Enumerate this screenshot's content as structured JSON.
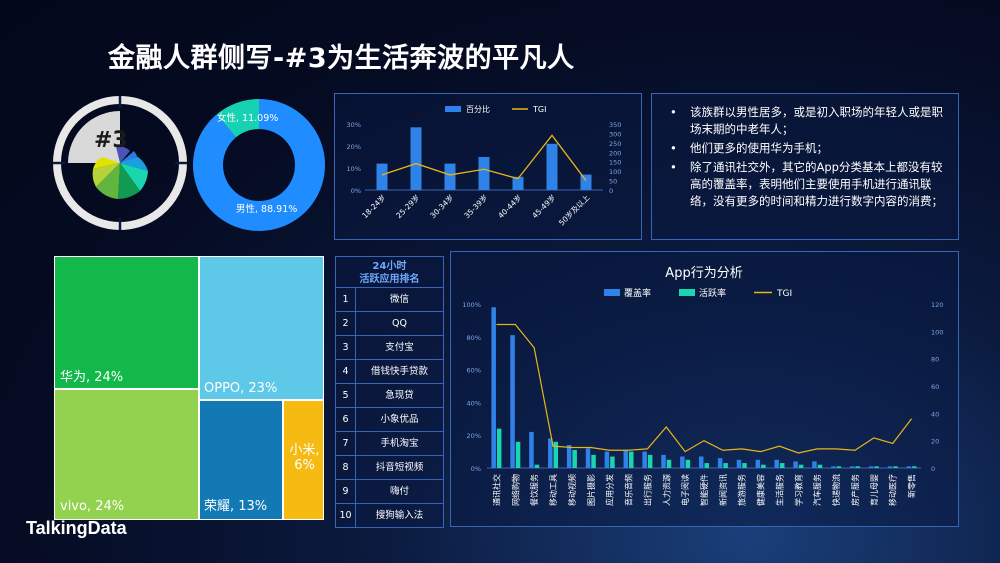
{
  "header": {
    "title": "金融人群侧写-#3为生活奔波的平凡人"
  },
  "footer": {
    "logo": "TalkingData"
  },
  "badge": {
    "label": "#3"
  },
  "gender_chart": {
    "type": "pie",
    "slices": [
      {
        "label": "女性, 11.09%",
        "value": 11.09,
        "color": "#17d1b3"
      },
      {
        "label": "男性, 88.91%",
        "value": 88.91,
        "color": "#1f8cff"
      }
    ]
  },
  "age_chart": {
    "type": "bar",
    "legend": {
      "bar": "百分比",
      "line": "TGI"
    },
    "categories": [
      "18-24岁",
      "25-29岁",
      "30-34岁",
      "35-39岁",
      "40-44岁",
      "45-49岁",
      "50岁及以上"
    ],
    "percent": [
      12,
      28.5,
      12,
      15,
      6,
      21,
      7
    ],
    "tgi": [
      80,
      140,
      80,
      110,
      60,
      290,
      50
    ],
    "left_ticks": [
      "0%",
      "10%",
      "20%",
      "30%"
    ],
    "right_ticks": [
      "0",
      "50",
      "100",
      "150",
      "200",
      "250",
      "300",
      "350"
    ],
    "ylim_left": [
      0,
      30
    ],
    "ylim_right": [
      0,
      350
    ]
  },
  "insights": [
    "该族群以男性居多，或是初入职场的年轻人或是职场末期的中老年人；",
    "他们更多的使用华为手机；",
    "除了通讯社交外，其它的App分类基本上都没有较高的覆盖率，表明他们主要使用手机进行通讯联络，没有更多的时间和精力进行数字内容的消费；"
  ],
  "brand_treemap": [
    {
      "label": "华为, 24%",
      "value": 24,
      "color": "#12b94a"
    },
    {
      "label": "OPPO, 23%",
      "value": 23,
      "color": "#5ec8e8"
    },
    {
      "label": "vivo, 24%",
      "value": 24,
      "color": "#93d24f"
    },
    {
      "label": "荣耀, 13%",
      "value": 13,
      "color": "#1279b4"
    },
    {
      "label": "小米, 6%",
      "value": 6,
      "color": "#f6bb12"
    }
  ],
  "app_ranking": {
    "title_line1": "24小时",
    "title_line2": "活跃应用排名",
    "rows": [
      {
        "rank": "1",
        "app": "微信"
      },
      {
        "rank": "2",
        "app": "QQ"
      },
      {
        "rank": "3",
        "app": "支付宝"
      },
      {
        "rank": "4",
        "app": "借钱快手贷款"
      },
      {
        "rank": "5",
        "app": "急现贷"
      },
      {
        "rank": "6",
        "app": "小象优品"
      },
      {
        "rank": "7",
        "app": "手机淘宝"
      },
      {
        "rank": "8",
        "app": "抖音短视频"
      },
      {
        "rank": "9",
        "app": "嗨付"
      },
      {
        "rank": "10",
        "app": "搜狗输入法"
      }
    ]
  },
  "chart_data": {
    "type": "bar",
    "title": "App行为分析",
    "legend": [
      "覆盖率",
      "活跃率",
      "TGI"
    ],
    "categories": [
      "通讯社交",
      "网络购物",
      "餐饮服务",
      "移动工具",
      "移动视频",
      "图片摄影",
      "应用分发",
      "音乐音频",
      "出行服务",
      "人力资源",
      "电子阅读",
      "智能硬件",
      "新闻资讯",
      "旅游服务",
      "健康美容",
      "生活服务",
      "学习教育",
      "汽车服务",
      "快递物流",
      "房产服务",
      "育儿母婴",
      "移动医疗",
      "新零售"
    ],
    "series": [
      {
        "name": "覆盖率",
        "values": [
          98,
          81,
          22,
          18,
          14,
          12,
          10,
          11,
          10,
          8,
          7,
          7,
          6,
          5,
          5,
          5,
          4,
          4,
          1,
          1,
          1,
          1,
          1
        ]
      },
      {
        "name": "活跃率",
        "values": [
          24,
          16,
          2,
          16,
          11,
          8,
          7,
          10,
          8,
          5,
          5,
          3,
          3,
          3,
          2,
          3,
          2,
          2,
          1,
          1,
          1,
          1,
          1
        ]
      },
      {
        "name": "TGI",
        "values": [
          105,
          105,
          88,
          16,
          15,
          15,
          13,
          13,
          14,
          30,
          12,
          20,
          13,
          14,
          12,
          16,
          11,
          14,
          14,
          13,
          22,
          18,
          36
        ]
      }
    ],
    "left_ticks": [
      "0%",
      "20%",
      "40%",
      "60%",
      "80%",
      "100%"
    ],
    "right_ticks": [
      "0",
      "20",
      "40",
      "60",
      "80",
      "100",
      "120"
    ],
    "ylim_left": [
      0,
      100
    ],
    "ylim_right": [
      0,
      120
    ],
    "colors": {
      "cover": "#2f82e8",
      "active": "#19d6b0",
      "tgi": "#e8b418"
    }
  }
}
